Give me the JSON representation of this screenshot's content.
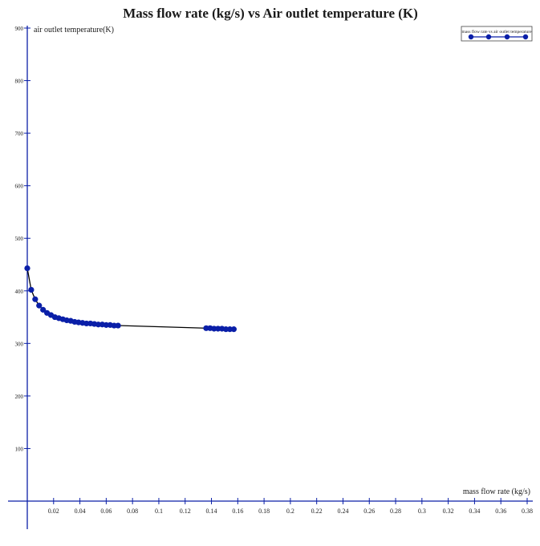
{
  "chart_data": {
    "type": "line",
    "title": "Mass flow rate (kg/s) vs Air outlet temperature (K)",
    "xlabel": "mass flow rate (kg/s)",
    "ylabel": "air outlet temperature(K)",
    "xlim": [
      0,
      0.38
    ],
    "ylim": [
      0,
      900
    ],
    "x_ticks": [
      "0.02",
      "0.04",
      "0.06",
      "0.08",
      "0.1",
      "0.12",
      "0.14",
      "0.16",
      "0.18",
      "0.2",
      "0.22",
      "0.24",
      "0.26",
      "0.28",
      "0.3",
      "0.32",
      "0.34",
      "0.36",
      "0.38"
    ],
    "y_ticks": [
      "100",
      "200",
      "300",
      "400",
      "500",
      "600",
      "700",
      "800",
      "900"
    ],
    "grid": false,
    "legend_position": "top-right",
    "series": [
      {
        "name": "mass flow rate vs air outlet temperature",
        "color": "#0a1fa8",
        "x": [
          0.0,
          0.003,
          0.006,
          0.009,
          0.012,
          0.015,
          0.018,
          0.021,
          0.024,
          0.027,
          0.03,
          0.033,
          0.036,
          0.039,
          0.042,
          0.045,
          0.048,
          0.051,
          0.054,
          0.057,
          0.06,
          0.063,
          0.066,
          0.069,
          0.136,
          0.139,
          0.142,
          0.145,
          0.148,
          0.151,
          0.154,
          0.157
        ],
        "y": [
          443,
          402,
          384,
          372,
          364,
          358,
          354,
          350,
          348,
          346,
          344,
          343,
          341,
          340,
          339,
          338,
          338,
          337,
          336,
          336,
          335,
          335,
          334,
          334,
          329,
          329,
          328,
          328,
          328,
          327,
          327,
          327
        ]
      }
    ]
  }
}
